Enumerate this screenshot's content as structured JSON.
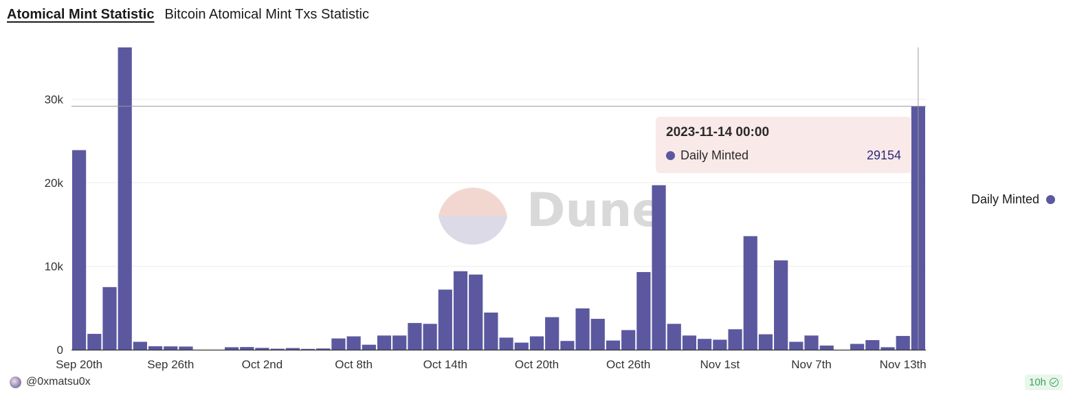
{
  "header": {
    "title": "Atomical Mint Statistic",
    "subtitle": "Bitcoin Atomical Mint Txs Statistic"
  },
  "watermark": {
    "text": "Dune"
  },
  "legend": {
    "label": "Daily Minted",
    "color": "#5b58a0"
  },
  "tooltip": {
    "date": "2023-11-14 00:00",
    "label": "Daily Minted",
    "value": "29154"
  },
  "footer": {
    "author": "@0xmatsu0x",
    "refresh_badge": "10h"
  },
  "chart_data": {
    "type": "bar",
    "title": "",
    "xlabel": "",
    "ylabel": "",
    "ylim": [
      0,
      36200
    ],
    "grid": true,
    "legend_position": "right",
    "series": [
      {
        "name": "Daily Minted",
        "color": "#5b58a0",
        "x": [
          "2023-09-20",
          "2023-09-21",
          "2023-09-22",
          "2023-09-23",
          "2023-09-24",
          "2023-09-25",
          "2023-09-26",
          "2023-09-27",
          "2023-09-28",
          "2023-09-29",
          "2023-09-30",
          "2023-10-01",
          "2023-10-02",
          "2023-10-03",
          "2023-10-04",
          "2023-10-05",
          "2023-10-06",
          "2023-10-07",
          "2023-10-08",
          "2023-10-09",
          "2023-10-10",
          "2023-10-11",
          "2023-10-12",
          "2023-10-13",
          "2023-10-14",
          "2023-10-15",
          "2023-10-16",
          "2023-10-17",
          "2023-10-18",
          "2023-10-19",
          "2023-10-20",
          "2023-10-21",
          "2023-10-22",
          "2023-10-23",
          "2023-10-24",
          "2023-10-25",
          "2023-10-26",
          "2023-10-27",
          "2023-10-28",
          "2023-10-29",
          "2023-10-30",
          "2023-10-31",
          "2023-11-01",
          "2023-11-02",
          "2023-11-03",
          "2023-11-04",
          "2023-11-05",
          "2023-11-06",
          "2023-11-07",
          "2023-11-08",
          "2023-11-09",
          "2023-11-10",
          "2023-11-11",
          "2023-11-12",
          "2023-11-13",
          "2023-11-14"
        ],
        "values": [
          23900,
          1900,
          7500,
          36200,
          950,
          420,
          400,
          380,
          0,
          0,
          300,
          320,
          220,
          120,
          200,
          100,
          150,
          1350,
          1600,
          600,
          1700,
          1700,
          3200,
          3100,
          7200,
          9400,
          9000,
          4450,
          1450,
          850,
          1600,
          3900,
          1050,
          4950,
          3700,
          1100,
          2350,
          9300,
          19700,
          3100,
          1700,
          1300,
          1200,
          2450,
          13600,
          1850,
          10700,
          950,
          1700,
          500,
          0,
          700,
          1150,
          300,
          1650,
          29154
        ]
      }
    ],
    "x_tick_labels": [
      "Sep 20th",
      "Sep 26th",
      "Oct 2nd",
      "Oct 8th",
      "Oct 14th",
      "Oct 20th",
      "Oct 26th",
      "Nov 1st",
      "Nov 7th",
      "Nov 13th"
    ],
    "x_tick_indices": [
      0,
      6,
      12,
      18,
      24,
      30,
      36,
      42,
      48,
      54
    ],
    "y_ticks": [
      0,
      10000,
      20000,
      30000
    ],
    "y_tick_labels": [
      "0",
      "10k",
      "20k",
      "30k"
    ]
  }
}
